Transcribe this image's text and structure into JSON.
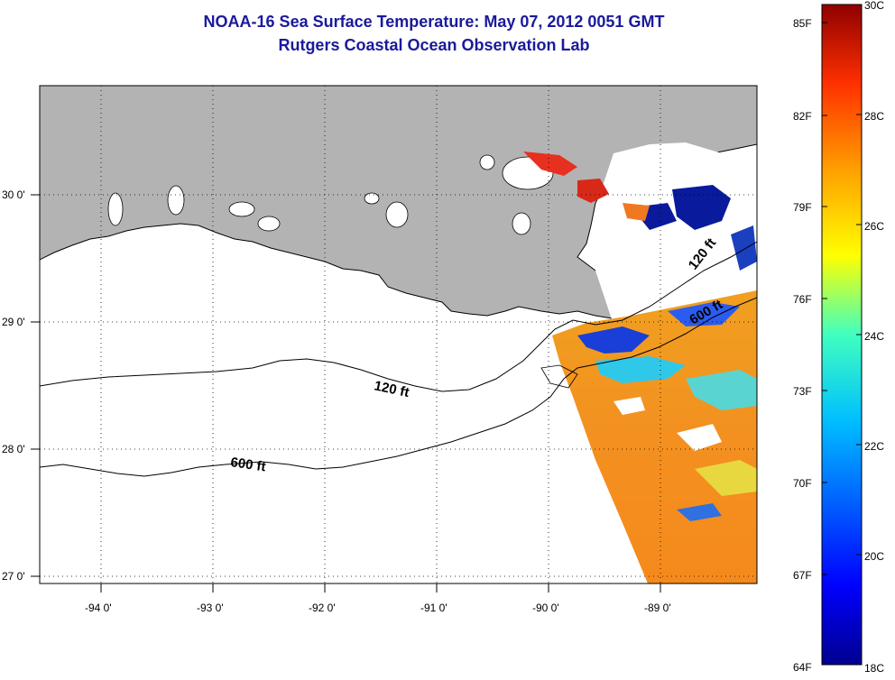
{
  "header": {
    "title": "NOAA-16 Sea Surface Temperature:  May 07, 2012 0051 GMT",
    "subtitle": "Rutgers Coastal Ocean Observation Lab"
  },
  "map": {
    "lon_range": [
      -94.5,
      -88.2
    ],
    "lat_range": [
      26.93,
      30.86
    ],
    "lon_ticks": [
      "-94 0'",
      "-93 0'",
      "-92 0'",
      "-91 0'",
      "-90 0'",
      "-89 0'"
    ],
    "lat_ticks": [
      "30 0'",
      "29 0'",
      "28 0'",
      "27 0'"
    ],
    "land_color": "#b3b3b3",
    "contours": [
      {
        "label": "120 ft",
        "positions": [
          "-90.9, 28.4",
          "-88.6, 29.5"
        ]
      },
      {
        "label": "600 ft",
        "positions": [
          "-93.4, 27.9",
          "-88.5, 29.0"
        ]
      }
    ]
  },
  "colorbar": {
    "min_c": 18,
    "max_c": 30,
    "f_labels": [
      "85F",
      "82F",
      "79F",
      "76F",
      "73F",
      "70F",
      "67F",
      "64F"
    ],
    "c_labels": [
      "30C",
      "28C",
      "26C",
      "24C",
      "22C",
      "20C",
      "18C"
    ],
    "colors": [
      "#00008f",
      "#0000ff",
      "#00bfff",
      "#40ffbf",
      "#ffff00",
      "#ff9f00",
      "#ff3000",
      "#8f0000"
    ]
  }
}
